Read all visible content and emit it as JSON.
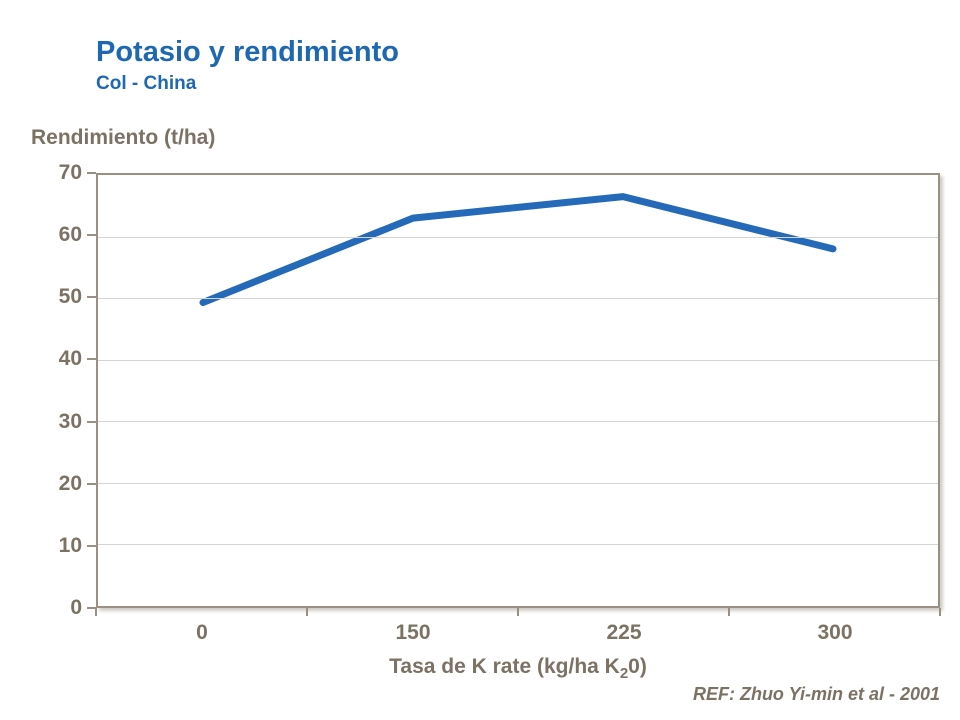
{
  "header": {
    "title": "Potasio y rendimiento",
    "subtitle": "Col - China"
  },
  "axes": {
    "y_title": "Rendimiento (t/ha)",
    "x_title_prefix": "Tasa de K rate (kg/ha K",
    "x_title_sub": "2",
    "x_title_suffix": "0)"
  },
  "footer": {
    "ref": "REF: Zhuo Yi-min et al - 2001"
  },
  "colors": {
    "title_blue": "#1e68b2",
    "line_blue": "#2569b9",
    "axis_text": "#7b7264",
    "axis_line": "#9a9082",
    "gridline": "#d6d4ce",
    "background": "#ffffff"
  },
  "chart_data": {
    "type": "line",
    "title": "Potasio y rendimiento",
    "subtitle": "Col - China",
    "categories": [
      "0",
      "150",
      "225",
      "300"
    ],
    "values": [
      49.3,
      63,
      66.5,
      58
    ],
    "series_name": "Rendimiento",
    "xlabel": "Tasa de K rate (kg/ha K20)",
    "ylabel": "Rendimiento (t/ha)",
    "ylim": [
      0,
      70
    ],
    "y_ticks": [
      0,
      10,
      20,
      30,
      40,
      50,
      60,
      70
    ],
    "grid": "horizontal",
    "legend": "none",
    "line_width": 7,
    "annotation": "REF: Zhuo Yi-min et al - 2001"
  }
}
